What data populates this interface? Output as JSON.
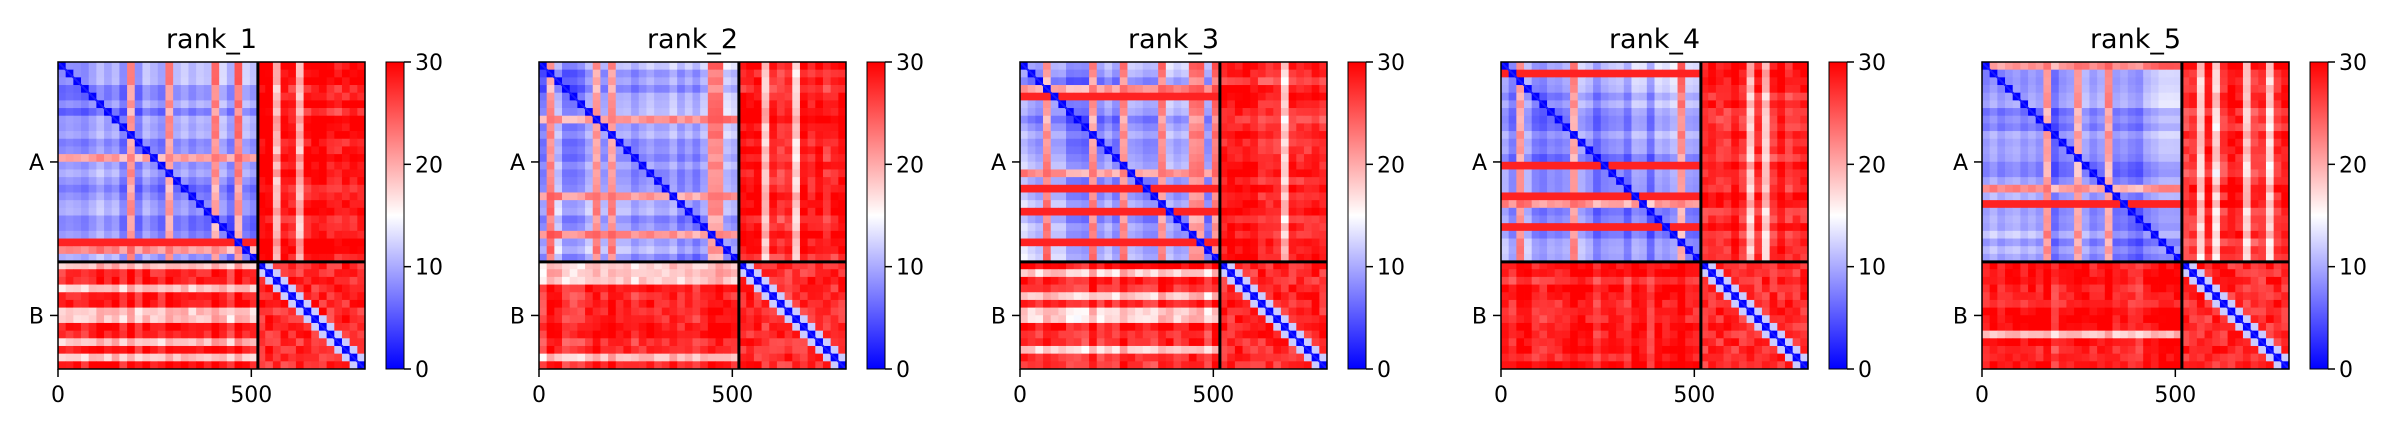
{
  "chart_data": [
    {
      "type": "heatmap",
      "title": "rank_1",
      "x_ticks": [
        0,
        500
      ],
      "y_tick_labels": [
        "A",
        "B"
      ],
      "chain_boundary": 517,
      "total_length": 794,
      "colorbar": {
        "min": 0,
        "max": 30,
        "ticks": [
          0,
          10,
          20,
          30
        ],
        "colormap": [
          "#0000ff",
          "#ffffff",
          "#ff0000"
        ]
      },
      "description_values": {
        "A_A_mean": 9,
        "A_B_mean": 27,
        "B_B_mean": 25,
        "diagonal": 0
      }
    },
    {
      "type": "heatmap",
      "title": "rank_2",
      "x_ticks": [
        0,
        500
      ],
      "y_tick_labels": [
        "A",
        "B"
      ],
      "chain_boundary": 517,
      "total_length": 794,
      "colorbar": {
        "min": 0,
        "max": 30,
        "ticks": [
          0,
          10,
          20,
          30
        ],
        "colormap": [
          "#0000ff",
          "#ffffff",
          "#ff0000"
        ]
      },
      "description_values": {
        "A_A_mean": 9,
        "A_B_mean": 26,
        "B_B_mean": 25,
        "diagonal": 0
      }
    },
    {
      "type": "heatmap",
      "title": "rank_3",
      "x_ticks": [
        0,
        500
      ],
      "y_tick_labels": [
        "A",
        "B"
      ],
      "chain_boundary": 517,
      "total_length": 794,
      "colorbar": {
        "min": 0,
        "max": 30,
        "ticks": [
          0,
          10,
          20,
          30
        ],
        "colormap": [
          "#0000ff",
          "#ffffff",
          "#ff0000"
        ]
      },
      "description_values": {
        "A_A_mean": 9,
        "A_B_mean": 26,
        "B_B_mean": 25,
        "diagonal": 0
      }
    },
    {
      "type": "heatmap",
      "title": "rank_4",
      "x_ticks": [
        0,
        500
      ],
      "y_tick_labels": [
        "A",
        "B"
      ],
      "chain_boundary": 517,
      "total_length": 794,
      "colorbar": {
        "min": 0,
        "max": 30,
        "ticks": [
          0,
          10,
          20,
          30
        ],
        "colormap": [
          "#0000ff",
          "#ffffff",
          "#ff0000"
        ]
      },
      "description_values": {
        "A_A_mean": 9,
        "A_B_mean": 26,
        "B_B_mean": 25,
        "diagonal": 0
      }
    },
    {
      "type": "heatmap",
      "title": "rank_5",
      "x_ticks": [
        0,
        500
      ],
      "y_tick_labels": [
        "A",
        "B"
      ],
      "chain_boundary": 517,
      "total_length": 794,
      "colorbar": {
        "min": 0,
        "max": 30,
        "ticks": [
          0,
          10,
          20,
          30
        ],
        "colormap": [
          "#0000ff",
          "#ffffff",
          "#ff0000"
        ]
      },
      "description_values": {
        "A_A_mean": 9,
        "A_B_mean": 26,
        "B_B_mean": 25,
        "diagonal": 0
      }
    }
  ]
}
